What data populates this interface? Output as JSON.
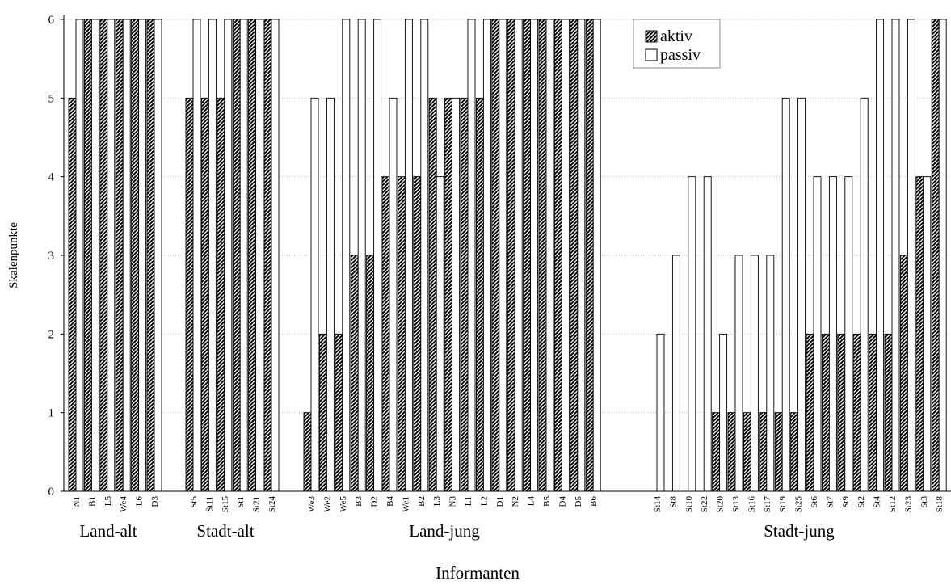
{
  "chart_data": {
    "type": "bar",
    "ylabel": "Skalenpunkte",
    "xlabel": "Informanten",
    "ylim": [
      0,
      6
    ],
    "yticks": [
      0,
      1,
      2,
      3,
      4,
      5,
      6
    ],
    "grid": true,
    "legend_position": "top-right",
    "series": [
      {
        "name": "aktiv",
        "pattern": "diagonal-hatch",
        "color": "#000000"
      },
      {
        "name": "passiv",
        "pattern": "none",
        "color": "#ffffff"
      }
    ],
    "groups": [
      {
        "name": "Land-alt",
        "categories": [
          {
            "label": "N1",
            "aktiv": 5,
            "passiv": 6
          },
          {
            "label": "B1",
            "aktiv": 6,
            "passiv": 6
          },
          {
            "label": "L5",
            "aktiv": 6,
            "passiv": 6
          },
          {
            "label": "We4",
            "aktiv": 6,
            "passiv": 6
          },
          {
            "label": "L6",
            "aktiv": 6,
            "passiv": 6
          },
          {
            "label": "D3",
            "aktiv": 6,
            "passiv": 6
          }
        ]
      },
      {
        "name": "Stadt-alt",
        "categories": [
          {
            "label": "St5",
            "aktiv": 5,
            "passiv": 6
          },
          {
            "label": "St11",
            "aktiv": 5,
            "passiv": 6
          },
          {
            "label": "St15",
            "aktiv": 5,
            "passiv": 6
          },
          {
            "label": "St1",
            "aktiv": 6,
            "passiv": 6
          },
          {
            "label": "St21",
            "aktiv": 6,
            "passiv": 6
          },
          {
            "label": "St24",
            "aktiv": 6,
            "passiv": 6
          }
        ]
      },
      {
        "name": "Land-jung",
        "categories": [
          {
            "label": "We3",
            "aktiv": 1,
            "passiv": 5
          },
          {
            "label": "We2",
            "aktiv": 2,
            "passiv": 5
          },
          {
            "label": "We5",
            "aktiv": 2,
            "passiv": 6
          },
          {
            "label": "B3",
            "aktiv": 3,
            "passiv": 6
          },
          {
            "label": "D2",
            "aktiv": 3,
            "passiv": 6
          },
          {
            "label": "B4",
            "aktiv": 4,
            "passiv": 5
          },
          {
            "label": "We1",
            "aktiv": 4,
            "passiv": 6
          },
          {
            "label": "B2",
            "aktiv": 4,
            "passiv": 6
          },
          {
            "label": "L3",
            "aktiv": 5,
            "passiv": 4
          },
          {
            "label": "N3",
            "aktiv": 5,
            "passiv": 5
          },
          {
            "label": "L1",
            "aktiv": 5,
            "passiv": 6
          },
          {
            "label": "L2",
            "aktiv": 5,
            "passiv": 6
          },
          {
            "label": "D1",
            "aktiv": 6,
            "passiv": 6
          },
          {
            "label": "N2",
            "aktiv": 6,
            "passiv": 6
          },
          {
            "label": "L4",
            "aktiv": 6,
            "passiv": 6
          },
          {
            "label": "B5",
            "aktiv": 6,
            "passiv": 6
          },
          {
            "label": "D4",
            "aktiv": 6,
            "passiv": 6
          },
          {
            "label": "D5",
            "aktiv": 6,
            "passiv": 6
          },
          {
            "label": "B6",
            "aktiv": 6,
            "passiv": 6
          }
        ]
      },
      {
        "name": "Stadt-jung",
        "categories": [
          {
            "label": "St14",
            "aktiv": 0,
            "passiv": 2
          },
          {
            "label": "St8",
            "aktiv": 0,
            "passiv": 3
          },
          {
            "label": "St10",
            "aktiv": 0,
            "passiv": 4
          },
          {
            "label": "St22",
            "aktiv": 0,
            "passiv": 4
          },
          {
            "label": "St20",
            "aktiv": 1,
            "passiv": 2
          },
          {
            "label": "St13",
            "aktiv": 1,
            "passiv": 3
          },
          {
            "label": "St16",
            "aktiv": 1,
            "passiv": 3
          },
          {
            "label": "St17",
            "aktiv": 1,
            "passiv": 3
          },
          {
            "label": "St19",
            "aktiv": 1,
            "passiv": 5
          },
          {
            "label": "St25",
            "aktiv": 1,
            "passiv": 5
          },
          {
            "label": "St6",
            "aktiv": 2,
            "passiv": 4
          },
          {
            "label": "St7",
            "aktiv": 2,
            "passiv": 4
          },
          {
            "label": "St9",
            "aktiv": 2,
            "passiv": 4
          },
          {
            "label": "St2",
            "aktiv": 2,
            "passiv": 5
          },
          {
            "label": "St4",
            "aktiv": 2,
            "passiv": 6
          },
          {
            "label": "St12",
            "aktiv": 2,
            "passiv": 6
          },
          {
            "label": "St23",
            "aktiv": 3,
            "passiv": 6
          },
          {
            "label": "St3",
            "aktiv": 4,
            "passiv": 4
          },
          {
            "label": "St18",
            "aktiv": 6,
            "passiv": 6
          }
        ]
      }
    ]
  }
}
